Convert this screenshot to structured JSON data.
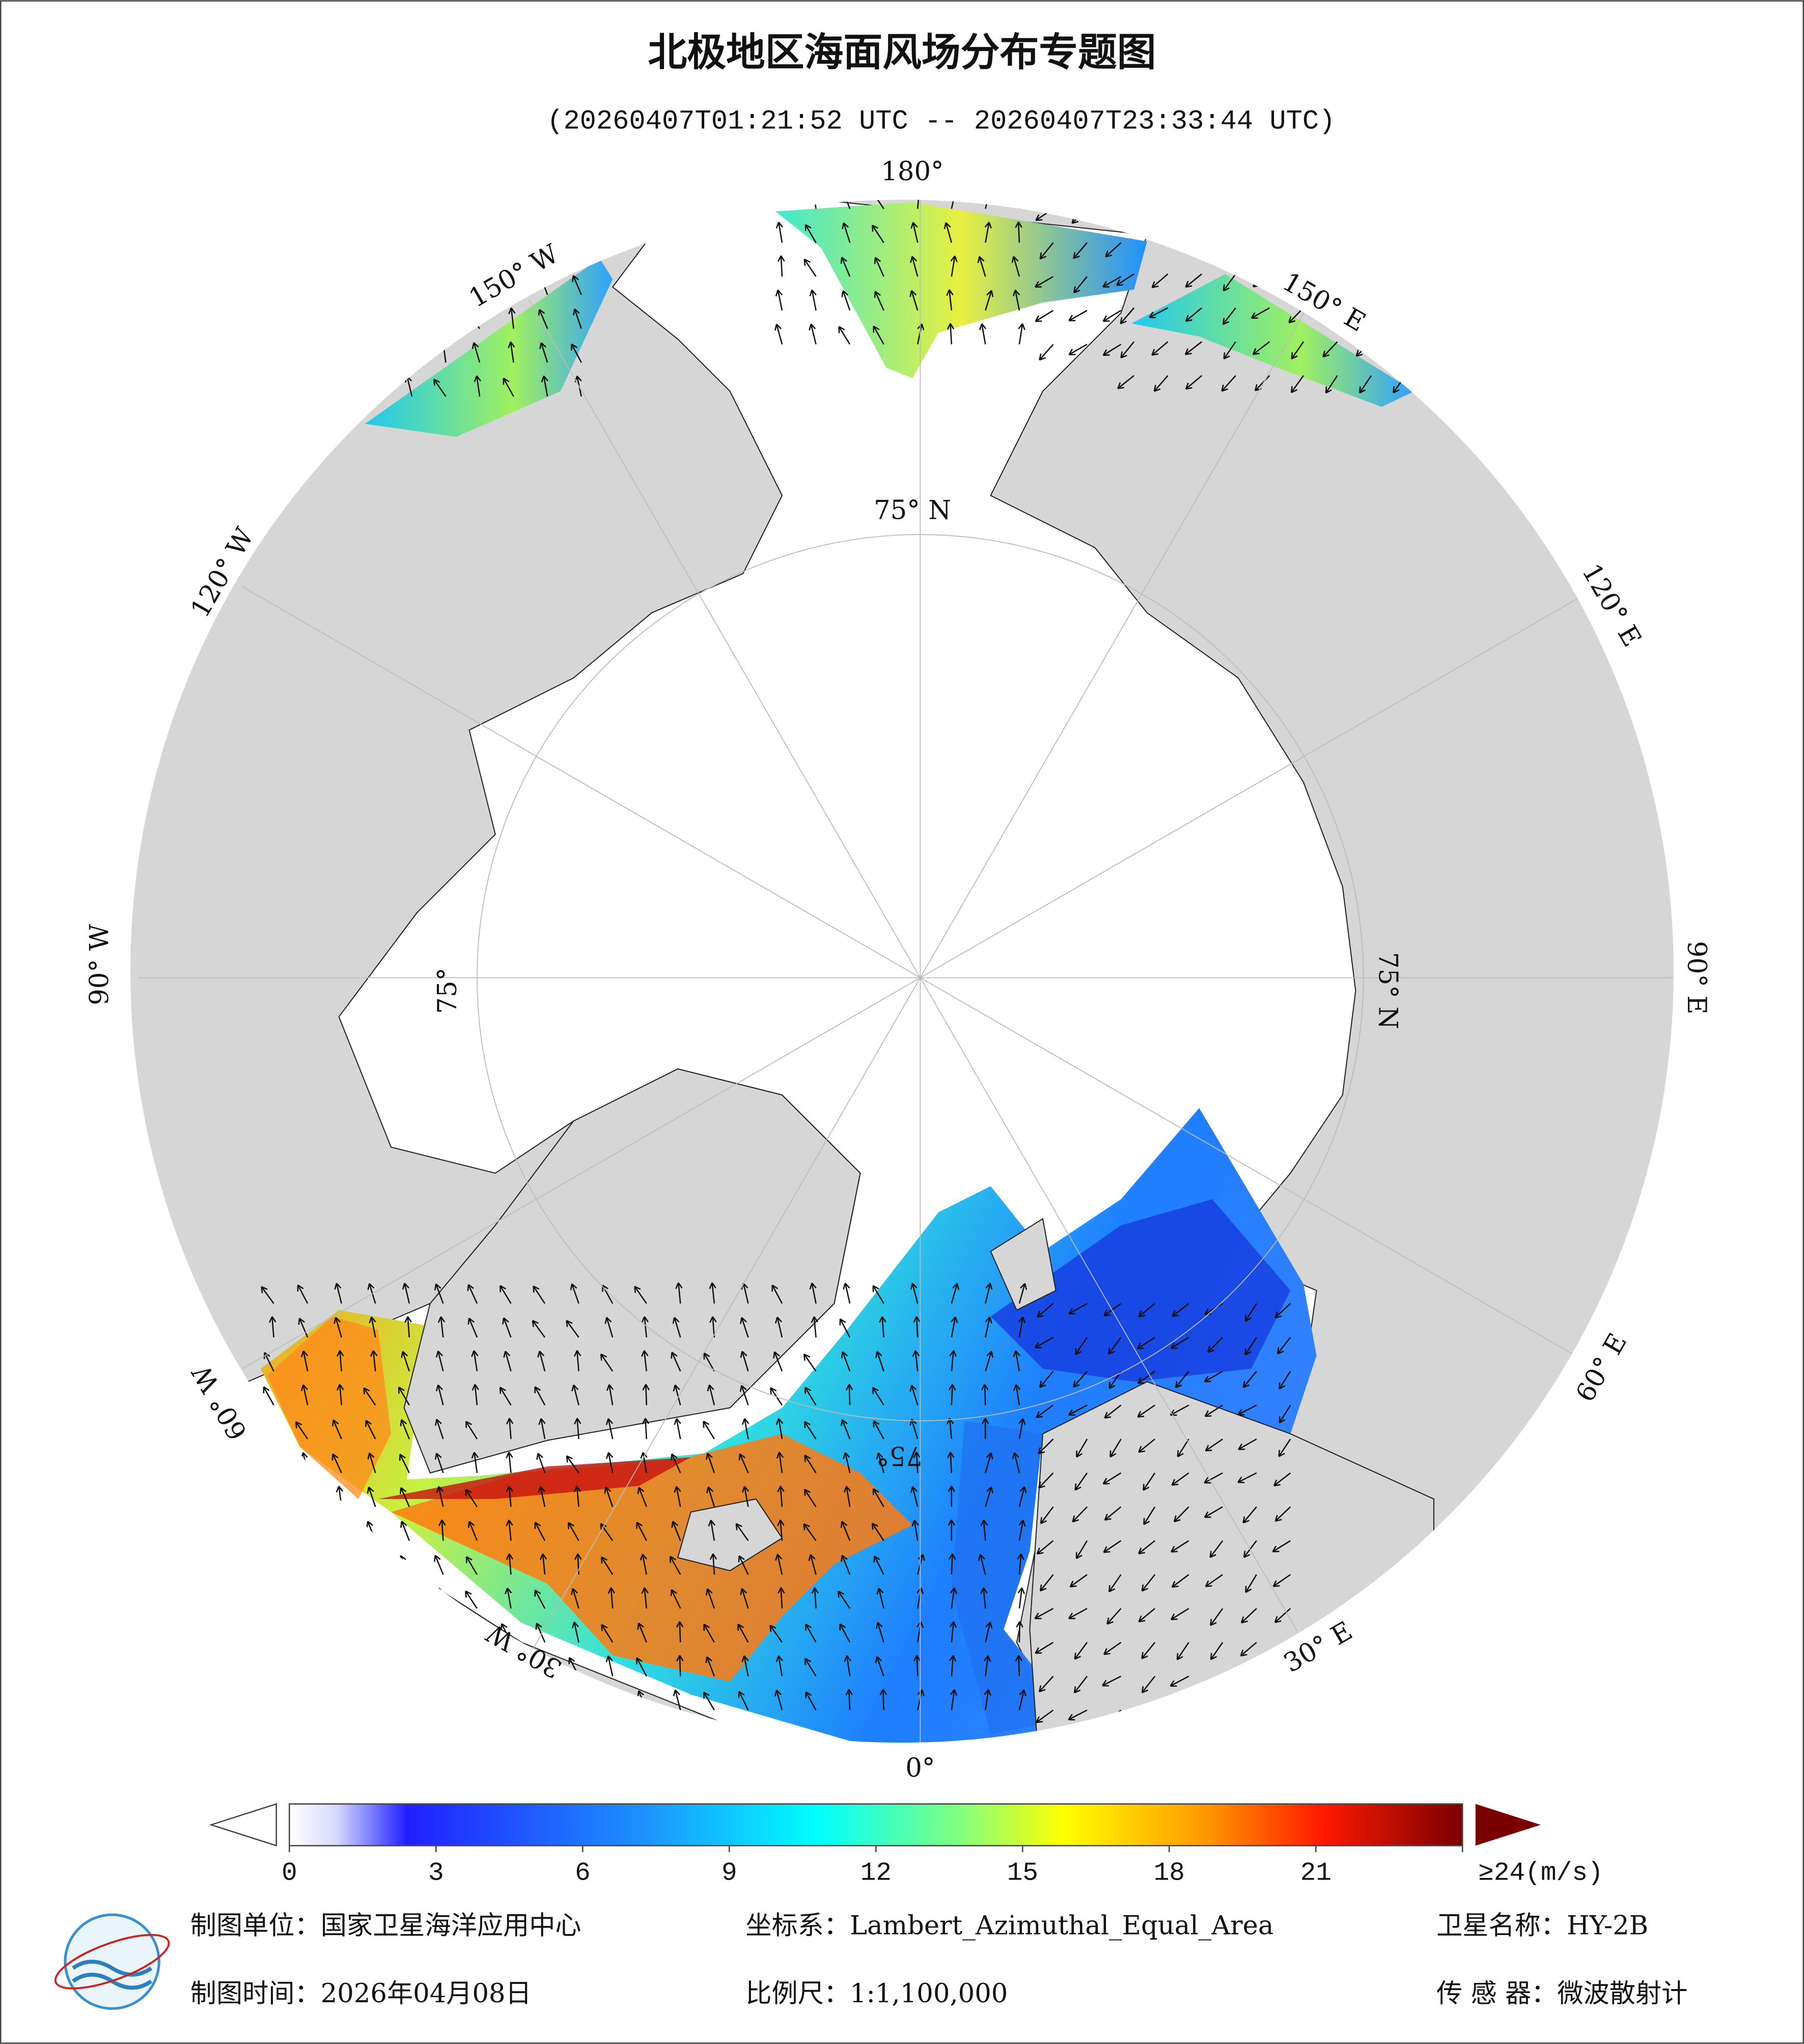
{
  "header": {
    "title": "北极地区海面风场分布专题图",
    "subtitle": "(20260407T01:21:52 UTC -- 20260407T23:33:44 UTC)"
  },
  "map": {
    "meridian_labels": [
      "180°",
      "150° E",
      "120° E",
      "90° E",
      "60° E",
      "30° E",
      "0°",
      "30° W",
      "60° W",
      "90° W",
      "120° W",
      "150° W"
    ],
    "latitude_labels": [
      "75° N",
      "75° N",
      "75°",
      "75°"
    ]
  },
  "colorbar": {
    "clim": [
      0,
      24
    ],
    "ticks": [
      0,
      3,
      6,
      9,
      12,
      15,
      18,
      21,
      {
        "value": 24,
        "label": "≥24(m/s)"
      }
    ]
  },
  "footer": {
    "unit": "制图单位：国家卫星海洋应用中心",
    "crs": "坐标系：Lambert_Azimuthal_Equal_Area",
    "satellite": "卫星名称：HY-2B",
    "date": "制图时间：2026年04月08日",
    "scale": "比例尺：1:1,100,000",
    "sensor": "传 感 器：微波散射计"
  }
}
